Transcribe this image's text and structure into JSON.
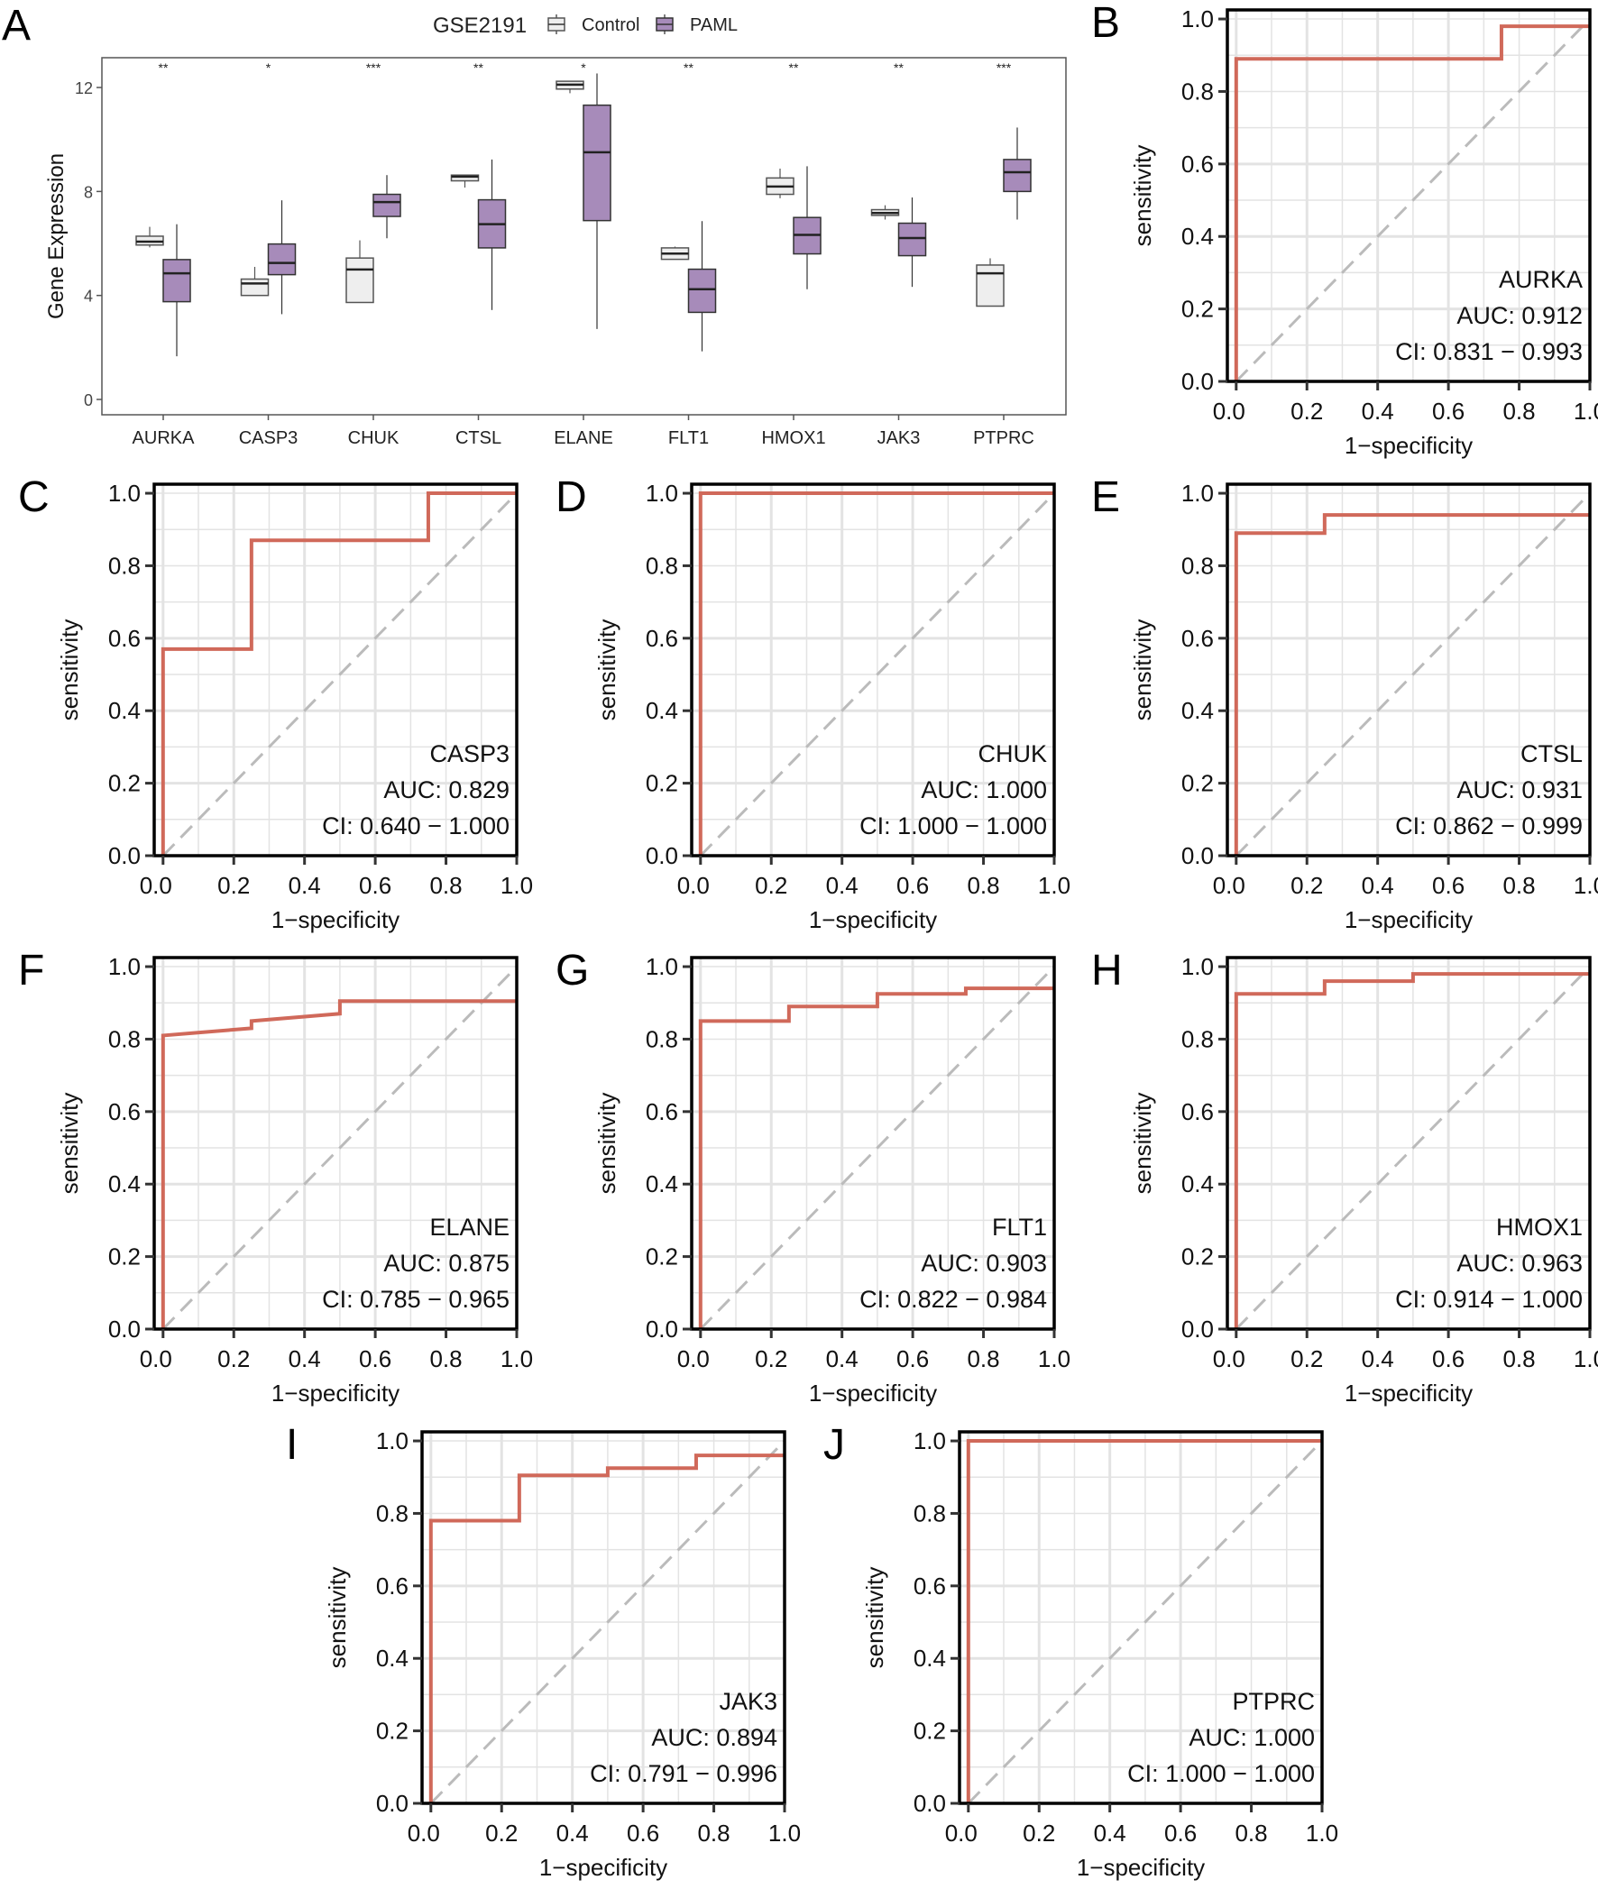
{
  "colors": {
    "control": "#eeeeee",
    "paml": "#a78bba",
    "roc": "#d0695a",
    "diag": "#bbbbbb",
    "grid": "#e3e3e3"
  },
  "chart_data": [
    {
      "type": "box",
      "panel_label": "A",
      "title": "",
      "legend": {
        "title": "GSE2191",
        "entries": [
          "Control",
          "PAML"
        ],
        "placement": "top"
      },
      "ylabel": "Gene Expression",
      "ylim": [
        -0.6,
        13.2
      ],
      "yticks": [
        "0",
        "4",
        "8",
        "12"
      ],
      "categories": [
        "AURKA",
        "CASP3",
        "CHUK",
        "CTSL",
        "ELANE",
        "FLT1",
        "HMOX1",
        "JAK3",
        "PTPRC"
      ],
      "significance": [
        "**",
        "*",
        "***",
        "**",
        "*",
        "**",
        "**",
        "**",
        "***"
      ],
      "series": [
        {
          "name": "Control",
          "boxes": [
            {
              "min": 5.85,
              "q1": 5.94,
              "median": 6.07,
              "q3": 6.28,
              "max": 6.64
            },
            {
              "min": 4.0,
              "q1": 4.0,
              "median": 4.46,
              "q3": 4.63,
              "max": 5.1
            },
            {
              "min": 3.73,
              "q1": 3.73,
              "median": 5.0,
              "q3": 5.44,
              "max": 6.12
            },
            {
              "min": 8.15,
              "q1": 8.41,
              "median": 8.57,
              "q3": 8.63,
              "max": 8.65
            },
            {
              "min": 11.78,
              "q1": 11.94,
              "median": 12.11,
              "q3": 12.24,
              "max": 12.26
            },
            {
              "min": 5.39,
              "q1": 5.39,
              "median": 5.61,
              "q3": 5.83,
              "max": 5.88
            },
            {
              "min": 7.74,
              "q1": 7.89,
              "median": 8.19,
              "q3": 8.52,
              "max": 8.88
            },
            {
              "min": 6.92,
              "q1": 7.08,
              "median": 7.17,
              "q3": 7.3,
              "max": 7.47
            },
            {
              "min": 3.59,
              "q1": 3.59,
              "median": 4.85,
              "q3": 5.17,
              "max": 5.43
            }
          ]
        },
        {
          "name": "PAML",
          "boxes": [
            {
              "min": 1.66,
              "q1": 3.76,
              "median": 4.85,
              "q3": 5.38,
              "max": 6.74
            },
            {
              "min": 3.28,
              "q1": 4.8,
              "median": 5.25,
              "q3": 5.98,
              "max": 7.66
            },
            {
              "min": 6.2,
              "q1": 7.04,
              "median": 7.59,
              "q3": 7.89,
              "max": 8.63
            },
            {
              "min": 3.44,
              "q1": 5.83,
              "median": 6.74,
              "q3": 7.68,
              "max": 9.23
            },
            {
              "min": 2.71,
              "q1": 6.88,
              "median": 9.51,
              "q3": 11.32,
              "max": 12.54
            },
            {
              "min": 1.85,
              "q1": 3.35,
              "median": 4.24,
              "q3": 5.01,
              "max": 6.86
            },
            {
              "min": 4.24,
              "q1": 5.6,
              "median": 6.33,
              "q3": 7.0,
              "max": 8.97
            },
            {
              "min": 4.33,
              "q1": 5.53,
              "median": 6.21,
              "q3": 6.78,
              "max": 7.77
            },
            {
              "min": 6.92,
              "q1": 8.0,
              "median": 8.74,
              "q3": 9.23,
              "max": 10.46
            }
          ]
        }
      ]
    },
    {
      "type": "line",
      "panel_label": "B",
      "gene": "AURKA",
      "auc_text": "AUC: 0.912",
      "ci_text": "CI: 0.831 − 0.993",
      "xlabel": "1−specificity",
      "ylabel": "sensitivity",
      "xlim": [
        -0.025,
        1.0
      ],
      "ylim": [
        0,
        1.025
      ],
      "ticks": [
        "0.0",
        "0.2",
        "0.4",
        "0.6",
        "0.8",
        "1.0"
      ],
      "points": [
        [
          0,
          0
        ],
        [
          0,
          0.89
        ],
        [
          0.75,
          0.89
        ],
        [
          0.75,
          0.98
        ],
        [
          1,
          0.98
        ]
      ]
    },
    {
      "type": "line",
      "panel_label": "C",
      "gene": "CASP3",
      "auc_text": "AUC: 0.829",
      "ci_text": "CI: 0.640 − 1.000",
      "xlabel": "1−specificity",
      "ylabel": "sensitivity",
      "xlim": [
        -0.025,
        1.0
      ],
      "ylim": [
        0,
        1.025
      ],
      "ticks": [
        "0.0",
        "0.2",
        "0.4",
        "0.6",
        "0.8",
        "1.0"
      ],
      "points": [
        [
          0,
          0
        ],
        [
          0,
          0.57
        ],
        [
          0.25,
          0.57
        ],
        [
          0.25,
          0.87
        ],
        [
          0.75,
          0.87
        ],
        [
          0.75,
          1
        ],
        [
          1,
          1
        ]
      ]
    },
    {
      "type": "line",
      "panel_label": "D",
      "gene": "CHUK",
      "auc_text": "AUC: 1.000",
      "ci_text": "CI: 1.000 − 1.000",
      "xlabel": "1−specificity",
      "ylabel": "sensitivity",
      "xlim": [
        -0.025,
        1.0
      ],
      "ylim": [
        0,
        1.025
      ],
      "ticks": [
        "0.0",
        "0.2",
        "0.4",
        "0.6",
        "0.8",
        "1.0"
      ],
      "points": [
        [
          0,
          0
        ],
        [
          0,
          1
        ],
        [
          1,
          1
        ]
      ]
    },
    {
      "type": "line",
      "panel_label": "E",
      "gene": "CTSL",
      "auc_text": "AUC: 0.931",
      "ci_text": "CI: 0.862 − 0.999",
      "xlabel": "1−specificity",
      "ylabel": "sensitivity",
      "xlim": [
        -0.025,
        1.0
      ],
      "ylim": [
        0,
        1.025
      ],
      "ticks": [
        "0.0",
        "0.2",
        "0.4",
        "0.6",
        "0.8",
        "1.0"
      ],
      "points": [
        [
          0,
          0
        ],
        [
          0,
          0.89
        ],
        [
          0.25,
          0.89
        ],
        [
          0.25,
          0.94
        ],
        [
          1,
          0.94
        ]
      ]
    },
    {
      "type": "line",
      "panel_label": "F",
      "gene": "ELANE",
      "auc_text": "AUC: 0.875",
      "ci_text": "CI: 0.785 − 0.965",
      "xlabel": "1−specificity",
      "ylabel": "sensitivity",
      "xlim": [
        -0.025,
        1.0
      ],
      "ylim": [
        0,
        1.025
      ],
      "ticks": [
        "0.0",
        "0.2",
        "0.4",
        "0.6",
        "0.8",
        "1.0"
      ],
      "points": [
        [
          0,
          0
        ],
        [
          0,
          0.81
        ],
        [
          0.25,
          0.83
        ],
        [
          0.25,
          0.85
        ],
        [
          0.5,
          0.87
        ],
        [
          0.5,
          0.905
        ],
        [
          1,
          0.905
        ]
      ]
    },
    {
      "type": "line",
      "panel_label": "G",
      "gene": "FLT1",
      "auc_text": "AUC: 0.903",
      "ci_text": "CI: 0.822 − 0.984",
      "xlabel": "1−specificity",
      "ylabel": "sensitivity",
      "xlim": [
        -0.025,
        1.0
      ],
      "ylim": [
        0,
        1.025
      ],
      "ticks": [
        "0.0",
        "0.2",
        "0.4",
        "0.6",
        "0.8",
        "1.0"
      ],
      "points": [
        [
          0,
          0
        ],
        [
          0,
          0.85
        ],
        [
          0.25,
          0.85
        ],
        [
          0.25,
          0.89
        ],
        [
          0.5,
          0.89
        ],
        [
          0.5,
          0.925
        ],
        [
          0.75,
          0.925
        ],
        [
          0.75,
          0.94
        ],
        [
          1,
          0.94
        ]
      ]
    },
    {
      "type": "line",
      "panel_label": "H",
      "gene": "HMOX1",
      "auc_text": "AUC: 0.963",
      "ci_text": "CI: 0.914 − 1.000",
      "xlabel": "1−specificity",
      "ylabel": "sensitivity",
      "xlim": [
        -0.025,
        1.0
      ],
      "ylim": [
        0,
        1.025
      ],
      "ticks": [
        "0.0",
        "0.2",
        "0.4",
        "0.6",
        "0.8",
        "1.0"
      ],
      "points": [
        [
          0,
          0
        ],
        [
          0,
          0.925
        ],
        [
          0.25,
          0.925
        ],
        [
          0.25,
          0.96
        ],
        [
          0.5,
          0.96
        ],
        [
          0.5,
          0.98
        ],
        [
          1,
          0.98
        ]
      ]
    },
    {
      "type": "line",
      "panel_label": "I",
      "gene": "JAK3",
      "auc_text": "AUC: 0.894",
      "ci_text": "CI: 0.791 − 0.996",
      "xlabel": "1−specificity",
      "ylabel": "sensitivity",
      "xlim": [
        -0.025,
        1.0
      ],
      "ylim": [
        0,
        1.025
      ],
      "ticks": [
        "0.0",
        "0.2",
        "0.4",
        "0.6",
        "0.8",
        "1.0"
      ],
      "points": [
        [
          0,
          0
        ],
        [
          0,
          0.78
        ],
        [
          0.25,
          0.78
        ],
        [
          0.25,
          0.905
        ],
        [
          0.5,
          0.905
        ],
        [
          0.5,
          0.925
        ],
        [
          0.75,
          0.925
        ],
        [
          0.75,
          0.96
        ],
        [
          1,
          0.96
        ]
      ]
    },
    {
      "type": "line",
      "panel_label": "J",
      "gene": "PTPRC",
      "auc_text": "AUC: 1.000",
      "ci_text": "CI: 1.000 − 1.000",
      "xlabel": "1−specificity",
      "ylabel": "sensitivity",
      "xlim": [
        -0.025,
        1.0
      ],
      "ylim": [
        0,
        1.025
      ],
      "ticks": [
        "0.0",
        "0.2",
        "0.4",
        "0.6",
        "0.8",
        "1.0"
      ],
      "points": [
        [
          0,
          0
        ],
        [
          0,
          1
        ],
        [
          1,
          1
        ]
      ]
    }
  ]
}
